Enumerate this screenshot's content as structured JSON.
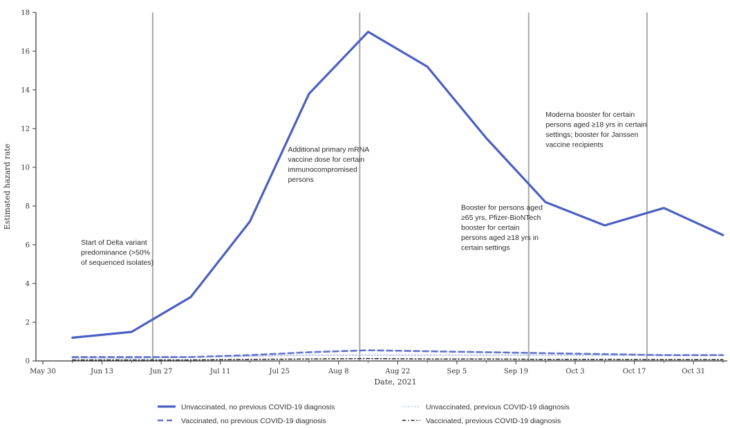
{
  "chart_data": {
    "type": "line",
    "title": "",
    "xlabel": "Date, 2021",
    "ylabel": "Estimated hazard rate",
    "x_ticks": [
      "May 30",
      "Jun 13",
      "Jun 27",
      "Jul 11",
      "Jul 25",
      "Aug 8",
      "Aug 22",
      "Sep 5",
      "Sep 19",
      "Oct 3",
      "Oct 17",
      "Oct 31"
    ],
    "ylim": [
      0,
      18
    ],
    "y_ticks": [
      0,
      2,
      4,
      6,
      8,
      10,
      12,
      14,
      16,
      18
    ],
    "grid": false,
    "legend_position": "bottom",
    "colors": {
      "unvaccinated_no_prev": "#4a5fc1",
      "unvaccinated_prev": "#b9c3ee",
      "vaccinated_no_prev": "#5f72cf",
      "vaccinated_prev": "#222222",
      "event_lines": "#a8a8a8"
    },
    "series": [
      {
        "name": "Unvaccinated, no previous COVID-19 diagnosis",
        "style": "solid",
        "x": [
          "Jun 6",
          "Jun 20",
          "Jul 4",
          "Jul 18",
          "Aug 1",
          "Aug 15",
          "Aug 29",
          "Sep 12",
          "Sep 26",
          "Oct 10",
          "Oct 24",
          "Nov 7"
        ],
        "values": [
          1.2,
          1.5,
          3.3,
          7.2,
          13.8,
          17.0,
          15.2,
          11.5,
          8.2,
          7.0,
          7.9,
          6.5
        ]
      },
      {
        "name": "Unvaccinated, previous COVID-19 diagnosis",
        "style": "dotted",
        "x": [
          "Jun 6",
          "Jun 20",
          "Jul 4",
          "Jul 18",
          "Aug 1",
          "Aug 15",
          "Aug 29",
          "Sep 12",
          "Sep 26",
          "Oct 10",
          "Oct 24",
          "Nov 7"
        ],
        "values": [
          0.15,
          0.15,
          0.2,
          0.25,
          0.3,
          0.3,
          0.3,
          0.3,
          0.3,
          0.3,
          0.3,
          0.3
        ]
      },
      {
        "name": "Vaccinated, no previous COVID-19 diagnosis",
        "style": "dashed",
        "x": [
          "Jun 6",
          "Jun 20",
          "Jul 4",
          "Jul 18",
          "Aug 1",
          "Aug 15",
          "Aug 29",
          "Sep 12",
          "Sep 26",
          "Oct 10",
          "Oct 24",
          "Nov 7"
        ],
        "values": [
          0.2,
          0.2,
          0.2,
          0.3,
          0.45,
          0.55,
          0.5,
          0.45,
          0.4,
          0.35,
          0.3,
          0.3
        ]
      },
      {
        "name": "Vaccinated, previous COVID-19 diagnosis",
        "style": "dash-dot",
        "x": [
          "Jun 6",
          "Jun 20",
          "Jul 4",
          "Jul 18",
          "Aug 1",
          "Aug 15",
          "Aug 29",
          "Sep 12",
          "Sep 26",
          "Oct 10",
          "Oct 24",
          "Nov 7"
        ],
        "values": [
          0.05,
          0.05,
          0.05,
          0.08,
          0.1,
          0.12,
          0.1,
          0.1,
          0.08,
          0.08,
          0.07,
          0.07
        ]
      }
    ],
    "events": [
      {
        "date": "Jun 25",
        "label_lines": [
          "Start of Delta variant",
          "predominance (>50%",
          "of sequenced isolates)"
        ],
        "label_x": "Jun 8",
        "label_y": 6.0
      },
      {
        "date": "Aug 13",
        "label_lines": [
          "Additional primary mRNA",
          "vaccine dose for certain",
          "immunocompromised",
          "persons"
        ],
        "label_x": "Jul 27",
        "label_y": 10.8
      },
      {
        "date": "Sep 22",
        "label_lines": [
          "Booster for persons aged",
          "≥65 yrs, Pfizer-BioNTech",
          "booster for certain",
          "persons aged ≥18 yrs in",
          "certain settings"
        ],
        "label_x": "Sep 6",
        "label_y": 7.8
      },
      {
        "date": "Oct 20",
        "label_lines": [
          "Moderna booster for certain",
          "persons aged ≥18 yrs in certain",
          "settings; booster for Janssen",
          "vaccine recipients"
        ],
        "label_x": "Sep 26",
        "label_y": 12.6
      }
    ]
  }
}
